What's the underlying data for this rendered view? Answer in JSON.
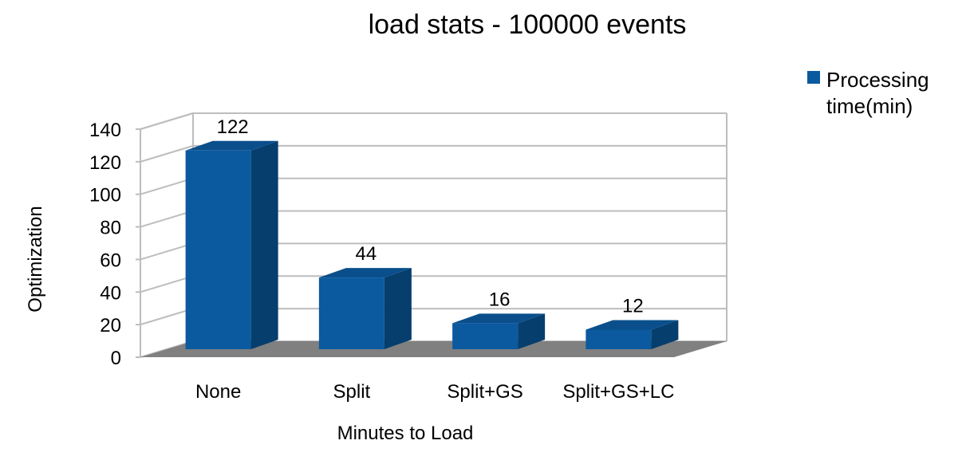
{
  "chart_data": {
    "type": "bar",
    "title": "load stats - 100000 events",
    "xlabel": "Minutes to Load",
    "ylabel": "Optimization",
    "categories": [
      "None",
      "Split",
      "Split+GS",
      "Split+GS+LC"
    ],
    "series": [
      {
        "name": "Processing time(min)",
        "values": [
          122,
          44,
          16,
          12
        ]
      }
    ],
    "legend_lines": [
      "Processing",
      "time(min)"
    ],
    "ylim": [
      0,
      140
    ],
    "yticks": [
      "0",
      "20",
      "40",
      "60",
      "80",
      "100",
      "120",
      "140"
    ],
    "data_labels": [
      "122",
      "44",
      "16",
      "12"
    ],
    "grid": true,
    "three_d": true,
    "legend_position": "top-right",
    "colors": {
      "bar_front": "#0b5aa0",
      "bar_side": "#063e6e",
      "bar_top": "#0a4f8c",
      "floor": "#808080",
      "grid": "#bdbdbd"
    }
  }
}
